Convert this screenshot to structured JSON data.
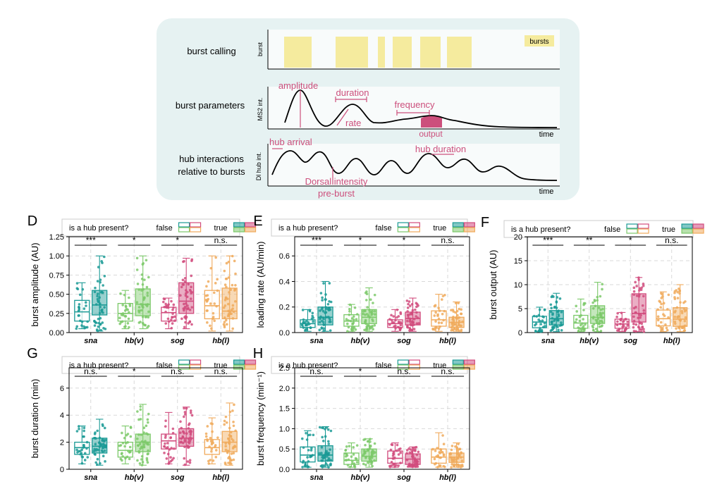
{
  "colors": {
    "sna": "#1a9a95",
    "hbv": "#7cc96a",
    "sog": "#d14b7d",
    "hbl": "#f0aa5c",
    "panel_bg": "#e6f2f2",
    "burst_fill": "#f5eb9e",
    "annot": "#cc4f7c"
  },
  "schematic": {
    "row_labels": [
      "burst calling",
      "burst parameters",
      "hub interactions",
      "relative to bursts"
    ],
    "ylabels": [
      "burst",
      "MS2 int.",
      "Dl hub int."
    ],
    "legend_bursts": "bursts",
    "time": "time",
    "annotations": {
      "amplitude": "amplitude",
      "duration": "duration",
      "frequency": "frequency",
      "rate": "rate",
      "output": "output",
      "hub_arrival": "hub arrival",
      "hub_duration": "hub duration",
      "dorsal_intensity": "Dorsal intensity",
      "pre_burst": "pre-burst"
    }
  },
  "legend": {
    "question": "is a hub present?",
    "false_label": "false",
    "true_label": "true"
  },
  "chart_data": [
    {
      "panel": "D",
      "type": "box",
      "ylabel": "burst amplitude (AU)",
      "ylim": [
        0,
        1.25
      ],
      "yticks": [
        "0.00",
        "0.25",
        "0.50",
        "0.75",
        "1.00",
        "1.25"
      ],
      "ytick_values": [
        0,
        0.25,
        0.5,
        0.75,
        1.0,
        1.25
      ],
      "categories": [
        "sna",
        "hb(v)",
        "sog",
        "hb(l)"
      ],
      "significance": [
        "***",
        "*",
        "*",
        "n.s."
      ],
      "series": [
        {
          "name": "false",
          "stats": [
            [
              0.05,
              0.15,
              0.27,
              0.42,
              0.65
            ],
            [
              0.05,
              0.15,
              0.25,
              0.38,
              0.55
            ],
            [
              0.05,
              0.15,
              0.26,
              0.33,
              0.45
            ],
            [
              0.02,
              0.18,
              0.35,
              0.55,
              1.0
            ]
          ]
        },
        {
          "name": "true",
          "stats": [
            [
              0.02,
              0.23,
              0.36,
              0.55,
              1.0
            ],
            [
              0.05,
              0.22,
              0.37,
              0.57,
              1.0
            ],
            [
              0.05,
              0.25,
              0.41,
              0.65,
              0.97
            ],
            [
              0.02,
              0.18,
              0.28,
              0.58,
              1.0
            ]
          ]
        }
      ]
    },
    {
      "panel": "E",
      "type": "box",
      "ylabel": "loading rate (AU/min)",
      "ylim": [
        0,
        0.75
      ],
      "yticks": [
        "0.0",
        "0.2",
        "0.4",
        "0.6"
      ],
      "ytick_values": [
        0,
        0.2,
        0.4,
        0.6
      ],
      "categories": [
        "sna",
        "hb(v)",
        "sog",
        "hb(l)"
      ],
      "significance": [
        "***",
        "*",
        "*",
        "n.s."
      ],
      "series": [
        {
          "name": "false",
          "stats": [
            [
              0.01,
              0.04,
              0.07,
              0.1,
              0.18
            ],
            [
              0.01,
              0.05,
              0.09,
              0.14,
              0.22
            ],
            [
              0.01,
              0.04,
              0.07,
              0.1,
              0.18
            ],
            [
              0.01,
              0.05,
              0.1,
              0.17,
              0.3
            ]
          ]
        },
        {
          "name": "true",
          "stats": [
            [
              0.01,
              0.06,
              0.12,
              0.2,
              0.4
            ],
            [
              0.01,
              0.07,
              0.12,
              0.18,
              0.35
            ],
            [
              0.01,
              0.06,
              0.11,
              0.16,
              0.27
            ],
            [
              0.01,
              0.04,
              0.08,
              0.12,
              0.24
            ]
          ]
        }
      ]
    },
    {
      "panel": "F",
      "type": "box",
      "ylabel": "burst output (AU)",
      "ylim": [
        0,
        20
      ],
      "yticks": [
        "0",
        "5",
        "10",
        "15",
        "20"
      ],
      "ytick_values": [
        0,
        5,
        10,
        15,
        20
      ],
      "categories": [
        "sna",
        "hb(v)",
        "sog",
        "hb(l)"
      ],
      "significance": [
        "***",
        "**",
        "*",
        "n.s."
      ],
      "series": [
        {
          "name": "false",
          "stats": [
            [
              0.2,
              1.0,
              2.2,
              3.4,
              5.3
            ],
            [
              0.2,
              0.9,
              2.0,
              3.6,
              7.0
            ],
            [
              0.2,
              0.9,
              1.8,
              2.8,
              4.2
            ],
            [
              0.2,
              1.4,
              2.9,
              4.7,
              8.5
            ]
          ]
        },
        {
          "name": "true",
          "stats": [
            [
              0.2,
              1.6,
              2.9,
              4.6,
              8.2
            ],
            [
              0.2,
              1.9,
              3.2,
              5.6,
              10.5
            ],
            [
              0.2,
              2.2,
              4.0,
              8.1,
              11.5
            ],
            [
              0.2,
              1.3,
              2.8,
              5.2,
              10.0
            ]
          ]
        }
      ]
    },
    {
      "panel": "G",
      "type": "box",
      "ylabel": "burst duration (min)",
      "ylim": [
        0,
        7.5
      ],
      "yticks": [
        "0",
        "2",
        "4",
        "6"
      ],
      "ytick_values": [
        0,
        2,
        4,
        6
      ],
      "categories": [
        "sna",
        "hb(v)",
        "sog",
        "hb(l)"
      ],
      "significance": [
        "n.s.",
        "*",
        "n.s.",
        "n.s."
      ],
      "series": [
        {
          "name": "false",
          "stats": [
            [
              0.4,
              1.1,
              1.6,
              2.0,
              3.2
            ],
            [
              0.4,
              0.9,
              1.4,
              2.0,
              3.2
            ],
            [
              0.4,
              1.5,
              2.1,
              2.6,
              4.2
            ],
            [
              0.4,
              1.1,
              1.6,
              2.2,
              3.8
            ]
          ]
        },
        {
          "name": "true",
          "stats": [
            [
              0.3,
              1.2,
              1.7,
              2.3,
              3.7
            ],
            [
              0.3,
              1.3,
              2.0,
              2.6,
              4.8
            ],
            [
              0.3,
              1.7,
              2.3,
              3.0,
              4.6
            ],
            [
              0.3,
              1.3,
              2.0,
              2.8,
              4.9
            ]
          ]
        }
      ]
    },
    {
      "panel": "H",
      "type": "box",
      "ylabel": "burst frequency (min⁻¹)",
      "ylim": [
        0,
        2.5
      ],
      "yticks": [
        "0.0",
        "0.5",
        "1.0",
        "1.5",
        "2.0",
        "2.5"
      ],
      "ytick_values": [
        0,
        0.5,
        1.0,
        1.5,
        2.0,
        2.5
      ],
      "categories": [
        "sna",
        "hb(v)",
        "sog",
        "hb(l)"
      ],
      "significance": [
        "n.s.",
        "*",
        "n.s.",
        "n.s."
      ],
      "series": [
        {
          "name": "false",
          "stats": [
            [
              0.05,
              0.18,
              0.35,
              0.55,
              0.95
            ],
            [
              0.05,
              0.12,
              0.22,
              0.4,
              0.65
            ],
            [
              0.05,
              0.15,
              0.27,
              0.45,
              0.65
            ],
            [
              0.05,
              0.15,
              0.3,
              0.5,
              0.9
            ]
          ]
        },
        {
          "name": "true",
          "stats": [
            [
              0.05,
              0.2,
              0.35,
              0.58,
              1.05
            ],
            [
              0.05,
              0.2,
              0.32,
              0.5,
              0.75
            ],
            [
              0.05,
              0.12,
              0.25,
              0.38,
              0.55
            ],
            [
              0.05,
              0.17,
              0.3,
              0.4,
              0.65
            ]
          ]
        }
      ]
    }
  ]
}
